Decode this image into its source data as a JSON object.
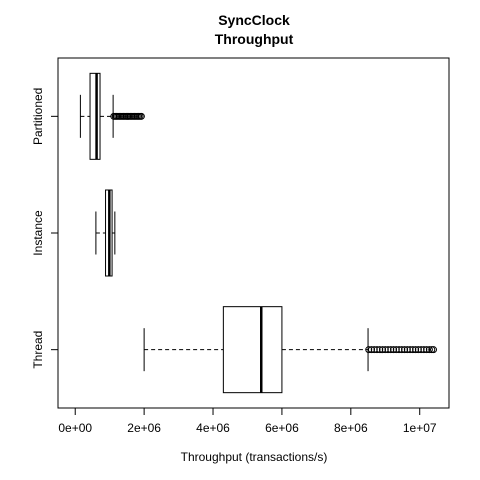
{
  "chart_data": {
    "type": "boxplot",
    "orientation": "horizontal",
    "title": "SyncClock",
    "subtitle": "Throughput",
    "xlabel": "Throughput (transactions/s)",
    "ylabel": "",
    "xlim": [
      -500000,
      10850000
    ],
    "xticks": [
      0,
      2000000,
      4000000,
      6000000,
      8000000,
      10000000
    ],
    "xtick_labels": [
      "0e+00",
      "2e+06",
      "4e+06",
      "6e+06",
      "8e+06",
      "1e+07"
    ],
    "grid": false,
    "legend": "none",
    "categories": [
      "Thread",
      "Instance",
      "Partitioned"
    ],
    "series": [
      {
        "whisker_low": 2000000,
        "q1": 4300000,
        "median": 5400000,
        "q3": 6000000,
        "whisker_high": 8500000,
        "outliers": [
          8520000,
          8600000,
          8680000,
          8760000,
          8840000,
          8920000,
          9000000,
          9080000,
          9160000,
          9240000,
          9320000,
          9400000,
          9480000,
          9560000,
          9640000,
          9720000,
          9800000,
          9880000,
          9960000,
          10040000,
          10120000,
          10200000,
          10280000,
          10350000,
          10400000
        ]
      },
      {
        "whisker_low": 600000,
        "q1": 880000,
        "median": 990000,
        "q3": 1070000,
        "whisker_high": 1150000,
        "outliers": []
      },
      {
        "whisker_low": 150000,
        "q1": 430000,
        "median": 620000,
        "q3": 720000,
        "whisker_high": 1100000,
        "outliers": [
          1120000,
          1160000,
          1200000,
          1240000,
          1280000,
          1320000,
          1360000,
          1400000,
          1440000,
          1480000,
          1520000,
          1560000,
          1600000,
          1640000,
          1680000,
          1720000,
          1760000,
          1800000,
          1840000,
          1880000,
          1920000
        ]
      }
    ]
  }
}
